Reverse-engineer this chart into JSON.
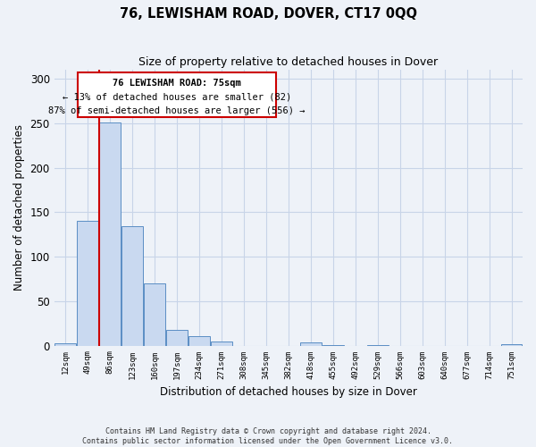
{
  "title": "76, LEWISHAM ROAD, DOVER, CT17 0QQ",
  "subtitle": "Size of property relative to detached houses in Dover",
  "xlabel": "Distribution of detached houses by size in Dover",
  "ylabel": "Number of detached properties",
  "categories": [
    "12sqm",
    "49sqm",
    "86sqm",
    "123sqm",
    "160sqm",
    "197sqm",
    "234sqm",
    "271sqm",
    "308sqm",
    "345sqm",
    "382sqm",
    "418sqm",
    "455sqm",
    "492sqm",
    "529sqm",
    "566sqm",
    "603sqm",
    "640sqm",
    "677sqm",
    "714sqm",
    "751sqm"
  ],
  "bar_values": [
    3,
    140,
    251,
    134,
    70,
    18,
    11,
    5,
    0,
    0,
    0,
    4,
    1,
    0,
    1,
    0,
    0,
    0,
    0,
    0,
    2
  ],
  "bar_color": "#c9d9f0",
  "bar_edge_color": "#5b8ec4",
  "ylim": [
    0,
    310
  ],
  "yticks": [
    0,
    50,
    100,
    150,
    200,
    250,
    300
  ],
  "property_line_x": 1.5,
  "property_line_label": "76 LEWISHAM ROAD: 75sqm",
  "annotation_line1": "← 13% of detached houses are smaller (82)",
  "annotation_line2": "87% of semi-detached houses are larger (556) →",
  "box_color": "#ffffff",
  "box_edge_color": "#cc0000",
  "vline_color": "#cc0000",
  "grid_color": "#c8d4e8",
  "background_color": "#eef2f8",
  "footer_line1": "Contains HM Land Registry data © Crown copyright and database right 2024.",
  "footer_line2": "Contains public sector information licensed under the Open Government Licence v3.0."
}
